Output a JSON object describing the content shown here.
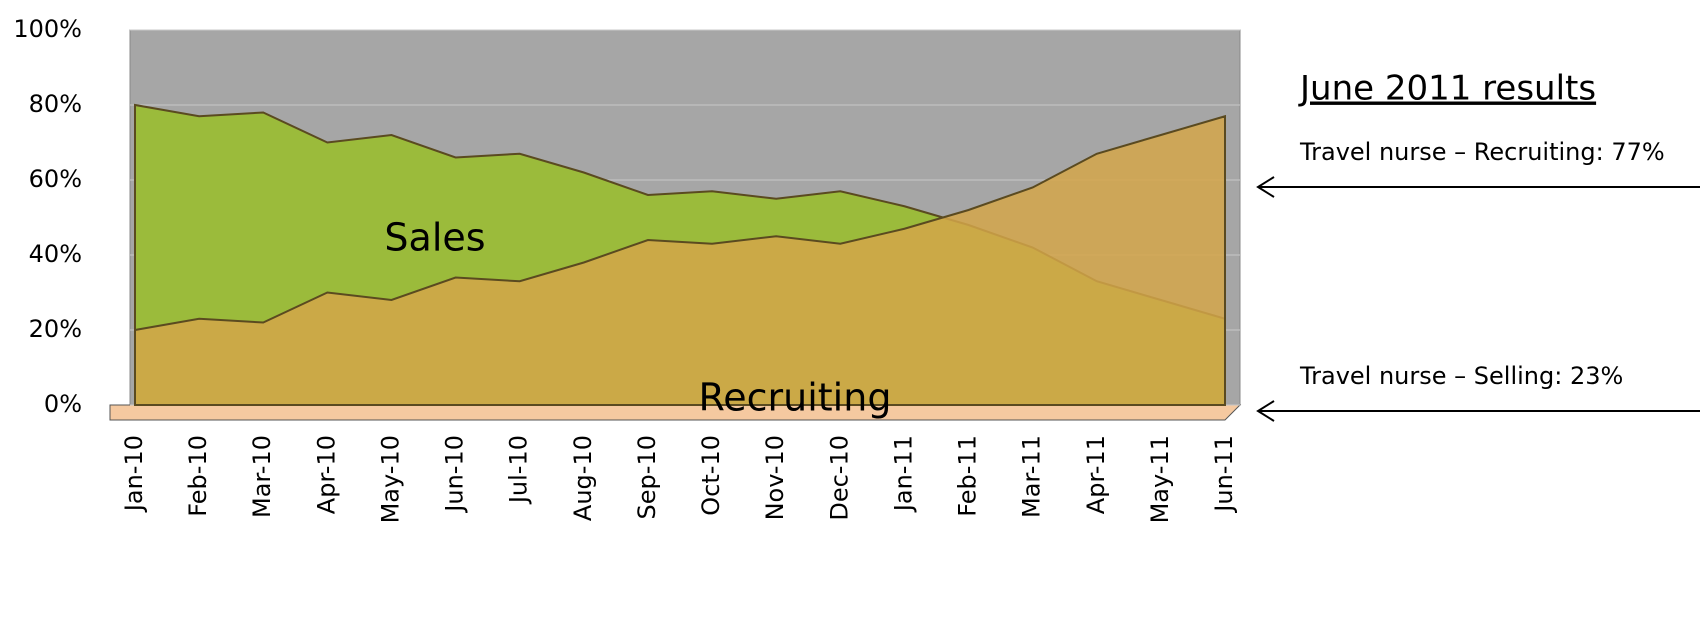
{
  "chart_data": {
    "type": "area",
    "categories": [
      "Jan-10",
      "Feb-10",
      "Mar-10",
      "Apr-10",
      "May-10",
      "Jun-10",
      "Jul-10",
      "Aug-10",
      "Sep-10",
      "Oct-10",
      "Nov-10",
      "Dec-10",
      "Jan-11",
      "Feb-11",
      "Mar-11",
      "Apr-11",
      "May-11",
      "Jun-11"
    ],
    "series": [
      {
        "name": "Sales",
        "color": "#9bbb3b",
        "values": [
          80,
          77,
          78,
          70,
          72,
          66,
          67,
          62,
          56,
          57,
          55,
          57,
          53,
          48,
          42,
          33,
          28,
          23
        ]
      },
      {
        "name": "Recruiting",
        "color": "#d4a64a",
        "values": [
          20,
          23,
          22,
          30,
          28,
          34,
          33,
          38,
          44,
          43,
          45,
          43,
          47,
          52,
          58,
          67,
          72,
          77
        ]
      }
    ],
    "ylim": [
      0,
      100
    ],
    "yticks": [
      {
        "value": 0,
        "label": "0%"
      },
      {
        "value": 20,
        "label": "20%"
      },
      {
        "value": 40,
        "label": "40%"
      },
      {
        "value": 60,
        "label": "60%"
      },
      {
        "value": 80,
        "label": "80%"
      },
      {
        "value": 100,
        "label": "100%"
      }
    ],
    "grid": true,
    "annotations": {
      "heading": "June 2011 results",
      "recruiting_note": "Travel nurse – Recruiting: 77%",
      "selling_note": "Travel nurse – Selling: 23%"
    }
  }
}
